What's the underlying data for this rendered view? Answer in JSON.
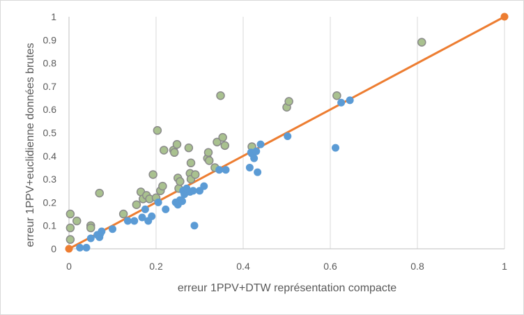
{
  "chart_data": {
    "type": "scatter",
    "title": "",
    "xlabel": "erreur 1PPV+DTW représentation compacte",
    "ylabel": "erreur 1PPV+euclidienne données brutes",
    "xlim": [
      0,
      1
    ],
    "ylim": [
      0,
      1
    ],
    "x_ticks": [
      "0",
      "0.2",
      "0.4",
      "0.6",
      "0.8",
      "1"
    ],
    "y_ticks": [
      "0",
      "0.1",
      "0.2",
      "0.3",
      "0.4",
      "0.5",
      "0.6",
      "0.7",
      "0.8",
      "0.9",
      "1"
    ],
    "grid": "vertical major gridlines",
    "legend": "none",
    "colors": {
      "green_fill": "#a9c18f",
      "green_stroke": "#8a8a8a",
      "blue_fill": "#5b9bd5",
      "line": "#ed7d31",
      "grid": "#d9d9d9",
      "axis": "#bfbfbf"
    },
    "series": [
      {
        "color": "green",
        "points": [
          [
            0.003,
            0.15
          ],
          [
            0.018,
            0.12
          ],
          [
            0.003,
            0.09
          ],
          [
            0.003,
            0.04
          ],
          [
            0.05,
            0.1
          ],
          [
            0.05,
            0.09
          ],
          [
            0.07,
            0.24
          ],
          [
            0.125,
            0.15
          ],
          [
            0.155,
            0.19
          ],
          [
            0.165,
            0.245
          ],
          [
            0.17,
            0.215
          ],
          [
            0.178,
            0.23
          ],
          [
            0.185,
            0.215
          ],
          [
            0.193,
            0.32
          ],
          [
            0.2,
            0.22
          ],
          [
            0.203,
            0.51
          ],
          [
            0.21,
            0.25
          ],
          [
            0.215,
            0.27
          ],
          [
            0.218,
            0.425
          ],
          [
            0.24,
            0.425
          ],
          [
            0.242,
            0.415
          ],
          [
            0.248,
            0.45
          ],
          [
            0.25,
            0.305
          ],
          [
            0.252,
            0.26
          ],
          [
            0.255,
            0.29
          ],
          [
            0.275,
            0.435
          ],
          [
            0.278,
            0.325
          ],
          [
            0.28,
            0.37
          ],
          [
            0.28,
            0.3
          ],
          [
            0.29,
            0.32
          ],
          [
            0.318,
            0.39
          ],
          [
            0.32,
            0.415
          ],
          [
            0.322,
            0.38
          ],
          [
            0.335,
            0.35
          ],
          [
            0.34,
            0.46
          ],
          [
            0.348,
            0.66
          ],
          [
            0.353,
            0.48
          ],
          [
            0.358,
            0.445
          ],
          [
            0.42,
            0.44
          ],
          [
            0.5,
            0.61
          ],
          [
            0.505,
            0.635
          ],
          [
            0.615,
            0.66
          ],
          [
            0.81,
            0.89
          ]
        ]
      },
      {
        "color": "blue",
        "points": [
          [
            0.025,
            0.005
          ],
          [
            0.04,
            0.005
          ],
          [
            0.05,
            0.045
          ],
          [
            0.065,
            0.06
          ],
          [
            0.07,
            0.05
          ],
          [
            0.072,
            0.065
          ],
          [
            0.075,
            0.075
          ],
          [
            0.1,
            0.085
          ],
          [
            0.135,
            0.12
          ],
          [
            0.15,
            0.12
          ],
          [
            0.168,
            0.135
          ],
          [
            0.175,
            0.17
          ],
          [
            0.182,
            0.12
          ],
          [
            0.19,
            0.14
          ],
          [
            0.205,
            0.2
          ],
          [
            0.222,
            0.17
          ],
          [
            0.245,
            0.2
          ],
          [
            0.25,
            0.19
          ],
          [
            0.255,
            0.21
          ],
          [
            0.26,
            0.205
          ],
          [
            0.262,
            0.25
          ],
          [
            0.265,
            0.235
          ],
          [
            0.27,
            0.26
          ],
          [
            0.278,
            0.245
          ],
          [
            0.285,
            0.25
          ],
          [
            0.288,
            0.1
          ],
          [
            0.3,
            0.25
          ],
          [
            0.31,
            0.27
          ],
          [
            0.345,
            0.34
          ],
          [
            0.36,
            0.34
          ],
          [
            0.415,
            0.35
          ],
          [
            0.418,
            0.415
          ],
          [
            0.42,
            0.41
          ],
          [
            0.425,
            0.39
          ],
          [
            0.43,
            0.42
          ],
          [
            0.433,
            0.33
          ],
          [
            0.44,
            0.45
          ],
          [
            0.502,
            0.485
          ],
          [
            0.612,
            0.435
          ],
          [
            0.625,
            0.63
          ],
          [
            0.645,
            0.64
          ]
        ]
      },
      {
        "color": "orange",
        "line": true,
        "points": [
          [
            0,
            0
          ],
          [
            1,
            1
          ]
        ]
      }
    ]
  }
}
